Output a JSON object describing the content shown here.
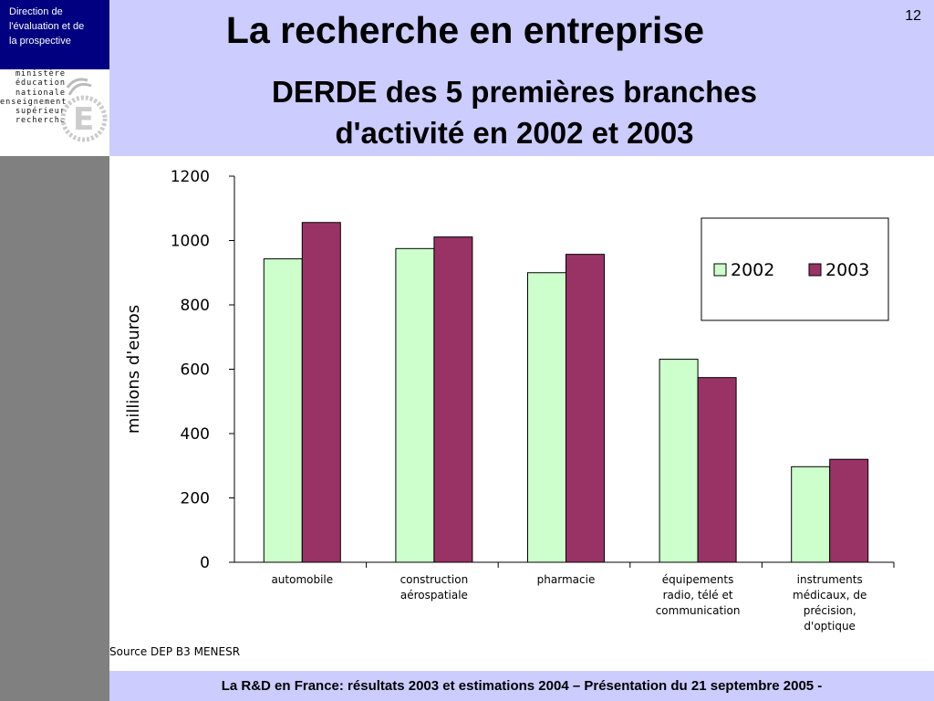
{
  "header": {
    "direction_lines": [
      "Direction de",
      "l'évaluation  et de",
      "la prospective"
    ],
    "logo_lines": [
      "ministère",
      "éducation",
      "nationale",
      "enseignement",
      "supérieur",
      "recherche"
    ],
    "logo_icon": "marianne-e-logo",
    "page_number": "12",
    "title": "La recherche en entreprise",
    "subtitle_lines": [
      "DERDE des 5 premières branches",
      "d'activité en 2002 et 2003"
    ]
  },
  "footer": {
    "text": "La R&D en France: résultats 2003 et estimations 2004 – Présentation du 21 septembre 2005 -"
  },
  "source": "Source DEP B3 MENESR",
  "colors": {
    "header_bg": "#ccccff",
    "direction_bg": "#000080",
    "side_bar": "#808080",
    "series_2002": "#ccffcc",
    "series_2003": "#993366"
  },
  "chart_data": {
    "type": "bar",
    "title": "DERDE des 5 premières branches d'activité en 2002 et 2003",
    "ylabel": "millions d'euros",
    "xlabel": "",
    "ylim": [
      0,
      1200
    ],
    "yticks": [
      0,
      200,
      400,
      600,
      800,
      1000,
      1200
    ],
    "grid": false,
    "legend_position": "top-right",
    "categories": [
      [
        "automobile"
      ],
      [
        "construction",
        "aérospatiale"
      ],
      [
        "pharmacie"
      ],
      [
        "équipements",
        "radio, télé et",
        "communication"
      ],
      [
        "instruments",
        "médicaux, de",
        "précision,",
        "d'optique"
      ]
    ],
    "series": [
      {
        "name": "2002",
        "color": "#ccffcc",
        "values": [
          943,
          975,
          900,
          631,
          297
        ]
      },
      {
        "name": "2003",
        "color": "#993366",
        "values": [
          1056,
          1011,
          957,
          574,
          320
        ]
      }
    ]
  }
}
